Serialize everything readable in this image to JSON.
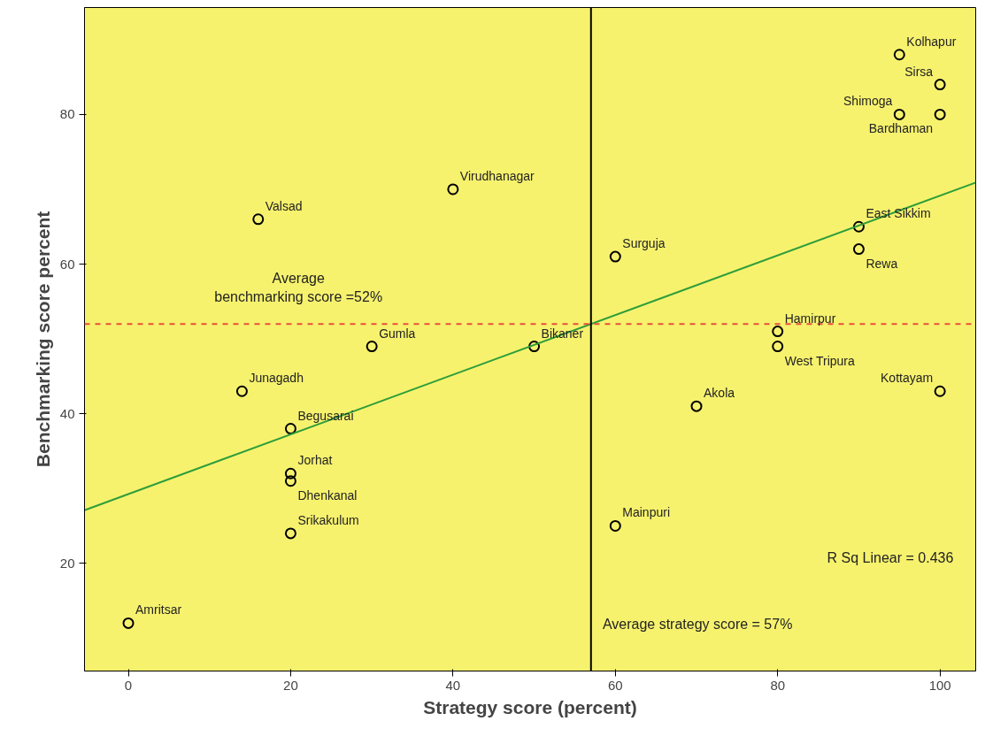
{
  "chart_data": {
    "type": "scatter",
    "xlabel": "Strategy score (percent)",
    "ylabel": "Benchmarking score percent",
    "xlim": [
      -5.4,
      104.4
    ],
    "ylim": [
      5.6,
      94.3
    ],
    "xticks": [
      0,
      20,
      40,
      60,
      80,
      100
    ],
    "yticks": [
      20,
      40,
      60,
      80
    ],
    "grid": false,
    "series": [
      {
        "marker": "circle",
        "color": "#000000",
        "x": [
          0,
          14,
          16,
          20,
          20,
          20,
          20,
          30,
          40,
          50,
          60,
          60,
          70,
          80,
          80,
          90,
          90,
          95,
          95,
          100,
          100,
          100
        ],
        "values": [
          12,
          43,
          66,
          38,
          32,
          31,
          24,
          49,
          70,
          49,
          61,
          25,
          41,
          51,
          49,
          65,
          62,
          88,
          80,
          80,
          84,
          43
        ],
        "value_labels": [
          "Amritsar",
          "Junagadh",
          "Valsad",
          "Begusarai",
          "Jorhat",
          "Dhenkanal",
          "Srikakulum",
          "Gumla",
          "Virudhanagar",
          "Bikaner",
          "Surguja",
          "Mainpuri",
          "Akola",
          "Hamirpur",
          "West Tripura",
          "East Sikkim",
          "Rewa",
          "Kolhapur",
          "Shimoga",
          "Bardhaman",
          "Sirsa",
          "Kottayam"
        ]
      },
      {
        "type": "line",
        "color": "#2e9e3a",
        "x": [
          -5.4,
          104.4
        ],
        "values": [
          27.1,
          70.9
        ]
      }
    ],
    "ref_lines": [
      {
        "axis": "y",
        "value": 52,
        "label": "Average benchmarking score =52%",
        "color": "#e8503a",
        "line_style": "dashed"
      },
      {
        "axis": "x",
        "value": 57,
        "label": "Average strategy score = 57%",
        "color": "#000000",
        "line_style": "solid"
      }
    ],
    "annotations": [
      "R Sq Linear = 0.436"
    ]
  }
}
